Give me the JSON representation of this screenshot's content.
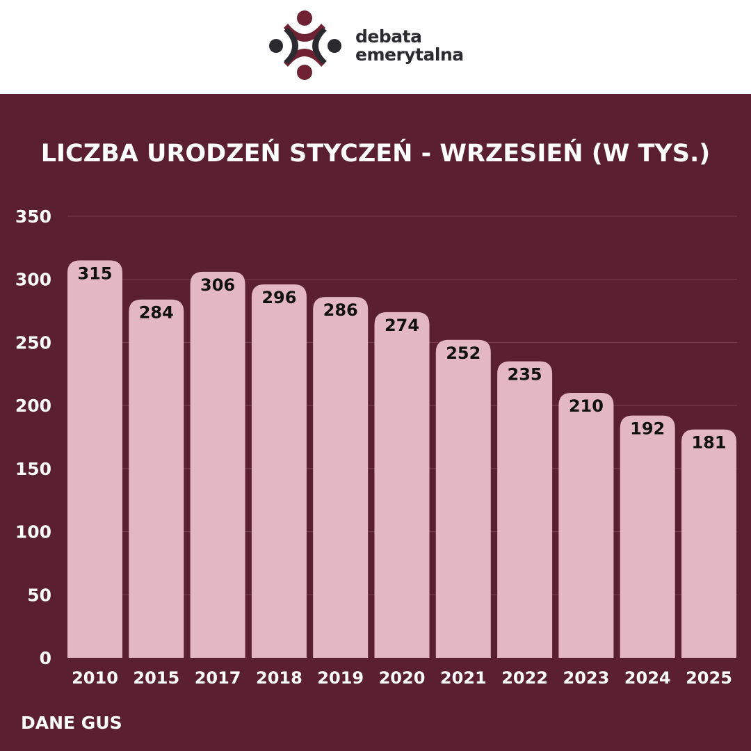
{
  "logo": {
    "line1": "debata",
    "line2": "emerytalna"
  },
  "colors": {
    "background": "#5a1f31",
    "bar": "#e3b8c4",
    "grid": "#7a4151",
    "logo_red": "#6e2234",
    "logo_dark": "#2b2a2e"
  },
  "chart_data": {
    "type": "bar",
    "title": "LICZBA URODZEŃ STYCZEŃ - WRZESIEŃ (W TYS.)",
    "categories": [
      "2010",
      "2015",
      "2017",
      "2018",
      "2019",
      "2020",
      "2021",
      "2022",
      "2023",
      "2024",
      "2025"
    ],
    "values": [
      315,
      284,
      306,
      296,
      286,
      274,
      252,
      235,
      210,
      192,
      181
    ],
    "ylim": [
      0,
      350
    ],
    "yticks": [
      0,
      50,
      100,
      150,
      200,
      250,
      300,
      350
    ],
    "xlabel": "",
    "ylabel": "",
    "grid": true,
    "source": "DANE GUS"
  }
}
